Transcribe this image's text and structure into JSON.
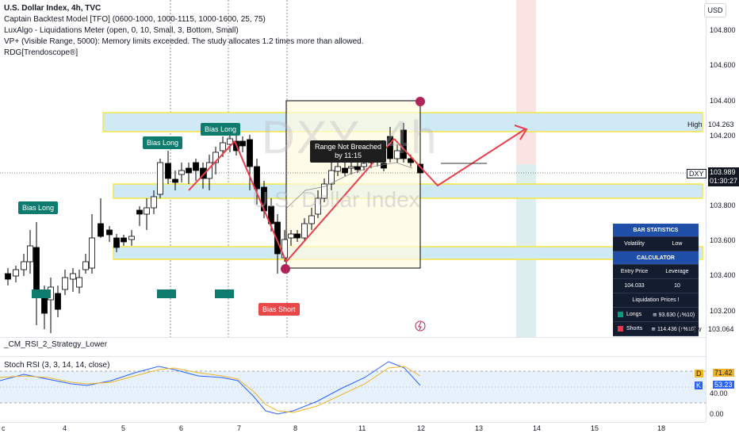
{
  "legend": {
    "title": "U.S. Dollar Index, 4h, TVC",
    "lines": [
      "Captain Backtest Model [TFO] (0600-1000, 1000-1115, 1000-1600, 25, 75)",
      "LuxAlgo - Liquidations Meter (open, 0, 10, Small, 3, Bottom, Small)",
      "VP+ (Visible Range, 5000): Memory limits exceeded. The study allocates 1.2 times more than allowed.",
      "RDG[Trendoscope®]"
    ]
  },
  "watermark": {
    "symbol": "DXY, 4h",
    "name": "U.S. Dollar Index"
  },
  "currency_button": "USD",
  "price_axis": {
    "ticks": [
      "104.800",
      "104.600",
      "104.400",
      "104.200",
      "103.800",
      "103.600",
      "103.400",
      "103.200"
    ],
    "high_label": "High",
    "high_value": "104.263",
    "symbol_tag": "DXY",
    "current_price": "103.989",
    "countdown": "01:30:27",
    "low_label": "Low",
    "low_value": "103.064"
  },
  "time_axis": {
    "labels": [
      "c",
      "4",
      "5",
      "6",
      "7",
      "8",
      "11",
      "12",
      "13",
      "14",
      "15",
      "18"
    ]
  },
  "annotations": {
    "bias_long": [
      "Bias Long",
      "Bias Long",
      "Bias Long"
    ],
    "bias_short": "Bias Short",
    "range_tooltip_line1": "Range Not Breached",
    "range_tooltip_line2": "by 11:15"
  },
  "stats_table": {
    "bar_statistics": "BAR STATISTICS",
    "volatility_label": "Volatility",
    "volatility_value": "Low",
    "calculator": "CALCULATOR",
    "entry_price_label": "Entry Price",
    "leverage_label": "Leverage",
    "entry_price_value": "104.033",
    "leverage_value": "10",
    "liquidation_prices": "Liquidation Prices !",
    "longs_label": "Longs",
    "longs_value": "≅ 93.630 (↓%10)",
    "shorts_label": "Shorts",
    "shorts_value": "≅ 114.436 (↑%10)",
    "longs_color": "#089981",
    "shorts_color": "#f23645"
  },
  "indicators": {
    "rsi_title": "_CM_RSI_2_Strategy_Lower",
    "stoch_title": "Stoch RSI (3, 3, 14, 14, close)",
    "d_label": "D",
    "d_value": "71.42",
    "k_label": "K",
    "k_value": "53.23",
    "ticks": [
      "80.00",
      "40.00",
      "0.00"
    ]
  },
  "colors": {
    "up": "#ffffff",
    "down": "#000000",
    "accent_red": "#e83d4a",
    "zone_yellow": "#f5e642",
    "zone_blue": "#cfeaf5"
  }
}
